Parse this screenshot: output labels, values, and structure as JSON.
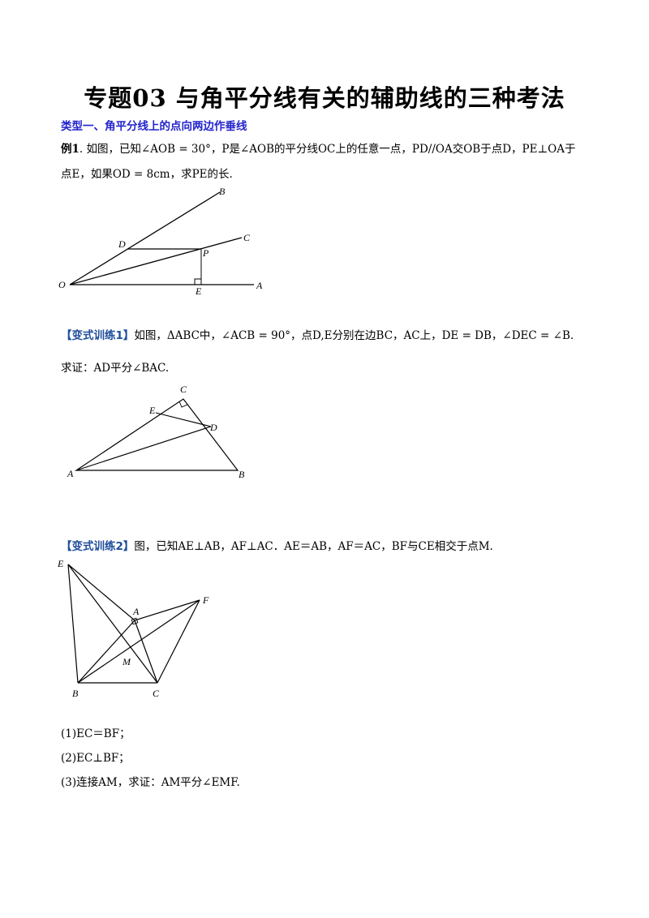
{
  "title": "专题03  与角平分线有关的辅助线的三种考法",
  "section_heading": "类型一、角平分线上的点向两边作垂线",
  "example1": {
    "label": "例1",
    "line1": ". 如图，已知∠AOB = 30°，P是∠AOB的平分线OC上的任意一点，PD//OA交OB于点D，PE⊥OA于",
    "line2": "点E，如果OD = 8cm，求PE的长.",
    "figure": {
      "labels": {
        "B": "B",
        "C": "C",
        "D": "D",
        "P": "P",
        "O": "O",
        "E": "E",
        "A": "A"
      }
    }
  },
  "variant1": {
    "bracket": "【变式训练1】",
    "text1": "如图，ΔABC中，∠ACB = 90°，点D,E分别在边BC，AC上，DE = DB，∠DEC = ∠B.",
    "text2": "求证：AD平分∠BAC.",
    "figure": {
      "labels": {
        "C": "C",
        "E": "E",
        "D": "D",
        "A": "A",
        "B": "B"
      }
    }
  },
  "variant2": {
    "bracket": "【变式训练2】",
    "text": "图，已知AE⊥AB，AF⊥AC．AE＝AB，AF＝AC，BF与CE相交于点M.",
    "figure": {
      "labels": {
        "E": "E",
        "A": "A",
        "F": "F",
        "M": "M",
        "B": "B",
        "C": "C"
      }
    },
    "questions": [
      "(1)EC＝BF；",
      "(2)EC⊥BF；",
      "(3)连接AM，求证：AM平分∠EMF."
    ]
  }
}
